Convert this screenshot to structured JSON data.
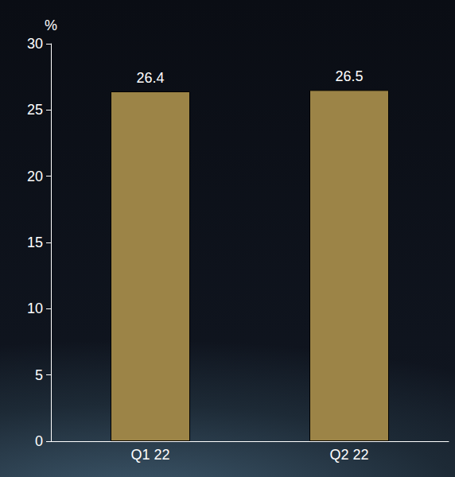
{
  "chart_data": {
    "type": "bar",
    "y_label": "%",
    "categories": [
      "Q1 22",
      "Q2 22"
    ],
    "values": [
      26.4,
      26.5
    ],
    "color": "#9c8447",
    "ylim": [
      0,
      30
    ],
    "yticks": [
      0,
      5,
      10,
      15,
      20,
      25,
      30
    ],
    "grid": false,
    "data_labels": true
  }
}
